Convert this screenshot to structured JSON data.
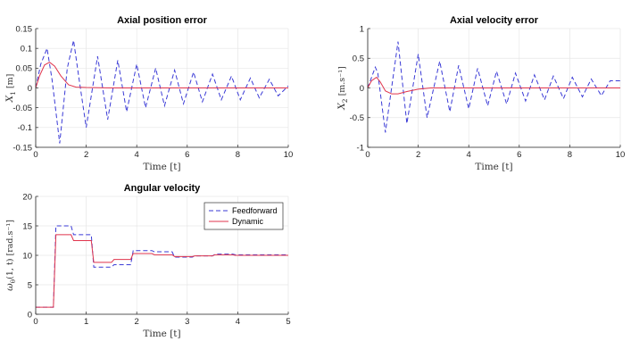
{
  "chart_data": [
    {
      "id": "p1",
      "type": "line",
      "title": "Axial position error",
      "xlabel": "Time [t]",
      "ylabel_main": "X",
      "ylabel_sub": "1",
      "ylabel_unit": " [m]",
      "xlim": [
        0,
        10
      ],
      "ylim": [
        -0.15,
        0.15
      ],
      "xticks": [
        0,
        2,
        4,
        6,
        8,
        10
      ],
      "yticks": [
        -0.15,
        -0.1,
        -0.05,
        0,
        0.05,
        0.1,
        0.15
      ],
      "xtick_labels": [
        "0",
        "2",
        "4",
        "6",
        "8",
        "10"
      ],
      "ytick_labels": [
        "-0.15",
        "-0.1",
        "-0.05",
        "0",
        "0.05",
        "0.1",
        "0.15"
      ],
      "grid": true,
      "series": [
        {
          "style": "dashed",
          "color": "#3a3ad6",
          "x": [
            0,
            0.2,
            0.45,
            0.65,
            0.95,
            1.25,
            1.5,
            1.7,
            2.0,
            2.45,
            2.85,
            3.25,
            3.6,
            4.0,
            4.35,
            4.75,
            5.1,
            5.5,
            5.85,
            6.25,
            6.6,
            7.0,
            7.35,
            7.75,
            8.1,
            8.5,
            8.85,
            9.25,
            9.6,
            10
          ],
          "y": [
            0,
            0.06,
            0.1,
            0.02,
            -0.14,
            0.05,
            0.12,
            0.03,
            -0.1,
            0.08,
            -0.08,
            0.07,
            -0.06,
            0.06,
            -0.05,
            0.05,
            -0.045,
            0.045,
            -0.04,
            0.04,
            -0.035,
            0.035,
            -0.03,
            0.03,
            -0.03,
            0.025,
            -0.025,
            0.022,
            -0.02,
            0.005
          ]
        },
        {
          "style": "solid",
          "color": "#e0344c",
          "x": [
            0,
            0.15,
            0.35,
            0.55,
            0.75,
            1.0,
            1.3,
            1.6,
            2.0,
            3.0,
            10
          ],
          "y": [
            0,
            0.03,
            0.058,
            0.065,
            0.055,
            0.03,
            0.008,
            0.002,
            0.001,
            0,
            0
          ]
        }
      ]
    },
    {
      "id": "p2",
      "type": "line",
      "title": "Axial velocity error",
      "xlabel": "Time [t]",
      "ylabel_main": "X",
      "ylabel_sub": "2",
      "ylabel_unit": " [m.s⁻¹]",
      "xlim": [
        0,
        10
      ],
      "ylim": [
        -1,
        1
      ],
      "xticks": [
        0,
        2,
        4,
        6,
        8,
        10
      ],
      "yticks": [
        -1,
        -0.5,
        0,
        0.5,
        1
      ],
      "xtick_labels": [
        "0",
        "2",
        "4",
        "6",
        "8",
        "10"
      ],
      "ytick_labels": [
        "-1",
        "-0.5",
        "0",
        "0.5",
        "1"
      ],
      "grid": true,
      "series": [
        {
          "style": "dashed",
          "color": "#3a3ad6",
          "x": [
            0,
            0.3,
            0.4,
            0.7,
            1.2,
            1.55,
            2.0,
            2.35,
            2.85,
            3.25,
            3.6,
            4.0,
            4.35,
            4.75,
            5.1,
            5.5,
            5.85,
            6.25,
            6.6,
            7.0,
            7.35,
            7.75,
            8.1,
            8.5,
            8.85,
            9.25,
            9.6,
            10
          ],
          "y": [
            0,
            0.35,
            0.25,
            -0.75,
            0.78,
            -0.6,
            0.57,
            -0.5,
            0.45,
            -0.4,
            0.38,
            -0.35,
            0.33,
            -0.3,
            0.28,
            -0.27,
            0.25,
            -0.22,
            0.22,
            -0.2,
            0.2,
            -0.18,
            0.18,
            -0.15,
            0.15,
            -0.13,
            0.12,
            0.12
          ]
        },
        {
          "style": "solid",
          "color": "#e0344c",
          "x": [
            0,
            0.15,
            0.35,
            0.5,
            0.7,
            0.95,
            1.2,
            1.55,
            2.0,
            2.5,
            3.0,
            10
          ],
          "y": [
            0,
            0.12,
            0.18,
            0.1,
            -0.05,
            -0.1,
            -0.1,
            -0.06,
            -0.02,
            0,
            0,
            0
          ]
        }
      ]
    },
    {
      "id": "p3",
      "type": "line",
      "title": "Angular velocity",
      "xlabel": "Time [t]",
      "ylabel_main": "ω",
      "ylabel_sub": "θ",
      "ylabel_unit": "(1, t) [rad.s⁻¹]",
      "xlim": [
        0,
        5
      ],
      "ylim": [
        0,
        20
      ],
      "xticks": [
        0,
        1,
        2,
        3,
        4,
        5
      ],
      "yticks": [
        0,
        5,
        10,
        15,
        20
      ],
      "xtick_labels": [
        "0",
        "1",
        "2",
        "3",
        "4",
        "5"
      ],
      "ytick_labels": [
        "0",
        "5",
        "10",
        "15",
        "20"
      ],
      "grid": true,
      "legend": {
        "position": "top-right",
        "entries": [
          "Feedforward",
          "Dynamic"
        ]
      },
      "series": [
        {
          "name": "Feedforward",
          "style": "dashed",
          "color": "#3a3ad6",
          "x": [
            0,
            0.35,
            0.4,
            0.7,
            0.75,
            1.1,
            1.15,
            1.5,
            1.55,
            1.88,
            1.93,
            2.3,
            2.35,
            2.7,
            2.75,
            3.1,
            3.15,
            3.5,
            3.55,
            3.9,
            3.95,
            5
          ],
          "y": [
            1.2,
            1.2,
            15,
            15,
            13.5,
            13.5,
            8,
            8,
            8.4,
            8.4,
            10.8,
            10.8,
            10.6,
            10.6,
            9.7,
            9.7,
            9.9,
            9.9,
            10.2,
            10.2,
            10.1,
            10.1
          ]
        },
        {
          "name": "Dynamic",
          "style": "solid",
          "color": "#e0344c",
          "x": [
            0,
            0.35,
            0.4,
            0.7,
            0.75,
            1.1,
            1.15,
            1.5,
            1.55,
            1.88,
            1.93,
            2.3,
            2.35,
            2.7,
            2.75,
            3.1,
            3.15,
            3.5,
            3.55,
            3.9,
            3.95,
            5
          ],
          "y": [
            1.2,
            1.2,
            13.5,
            13.5,
            12.5,
            12.5,
            8.8,
            8.8,
            9.3,
            9.3,
            10.3,
            10.3,
            10.1,
            10.1,
            9.8,
            9.8,
            9.9,
            9.9,
            10.1,
            10.1,
            10,
            10
          ]
        }
      ]
    }
  ]
}
